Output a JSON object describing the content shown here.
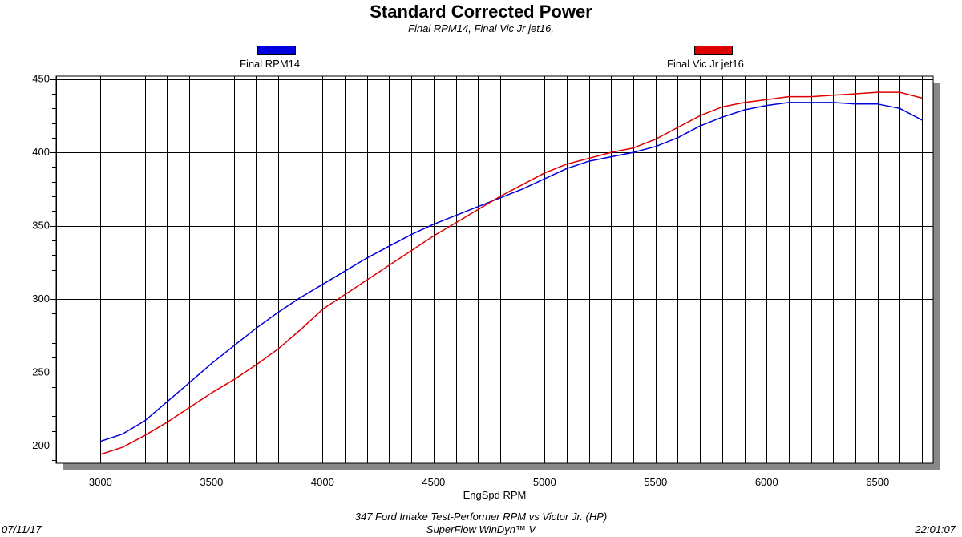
{
  "header": {
    "title": "Standard Corrected Power",
    "subtitle": "Final RPM14, Final Vic Jr jet16,"
  },
  "footer": {
    "date": "07/11/17",
    "description": "347 Ford Intake Test-Performer RPM vs Victor Jr. (HP)",
    "software": "SuperFlow WinDyn™ V",
    "time": "22:01:07"
  },
  "colors": {
    "series1": "#0000dd",
    "series2": "#dd0000",
    "grid": "#000000",
    "shadow": "#888888"
  },
  "chart_data": {
    "type": "line",
    "title": "Standard Corrected Power",
    "subtitle": "Final RPM14, Final Vic Jr jet16,",
    "xlabel": "EngSpd RPM",
    "ylabel": "",
    "xlim": [
      2800,
      6750
    ],
    "ylim": [
      188,
      452
    ],
    "x_ticks": [
      3000,
      3500,
      4000,
      4500,
      5000,
      5500,
      6000,
      6500
    ],
    "y_ticks": [
      200,
      250,
      300,
      350,
      400,
      450
    ],
    "x_grid_step": 100,
    "grid": true,
    "legend_placement": "top",
    "x": [
      3000,
      3100,
      3200,
      3300,
      3400,
      3500,
      3600,
      3700,
      3800,
      3900,
      4000,
      4100,
      4200,
      4300,
      4400,
      4500,
      4600,
      4700,
      4800,
      4900,
      5000,
      5100,
      5200,
      5300,
      5400,
      5500,
      5600,
      5700,
      5800,
      5900,
      6000,
      6100,
      6200,
      6300,
      6400,
      6500,
      6600,
      6700
    ],
    "series": [
      {
        "name": "Final RPM14",
        "color": "#0000dd",
        "values": [
          203,
          208,
          217,
          230,
          243,
          256,
          268,
          280,
          291,
          301,
          310,
          319,
          328,
          336,
          344,
          351,
          357,
          363,
          369,
          375,
          382,
          389,
          394,
          397,
          400,
          404,
          410,
          418,
          424,
          429,
          432,
          434,
          434,
          434,
          433,
          433,
          430,
          422
        ]
      },
      {
        "name": "Final Vic Jr jet16",
        "color": "#dd0000",
        "values": [
          194,
          199,
          207,
          216,
          226,
          236,
          245,
          255,
          266,
          279,
          293,
          303,
          313,
          323,
          333,
          343,
          352,
          361,
          370,
          378,
          386,
          392,
          396,
          400,
          403,
          409,
          417,
          425,
          431,
          434,
          436,
          438,
          438,
          439,
          440,
          441,
          441,
          437
        ]
      }
    ]
  }
}
